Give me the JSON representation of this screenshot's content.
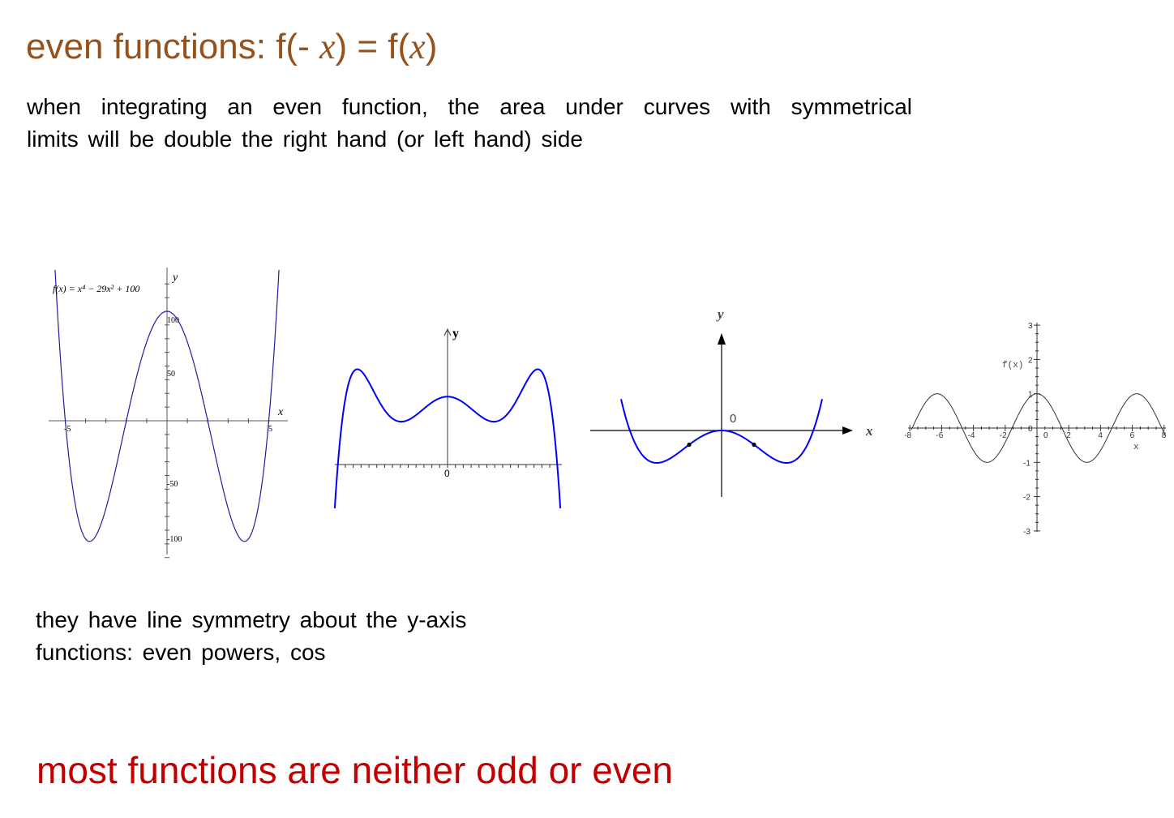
{
  "colors": {
    "title": "#97511a",
    "footer": "#c00000",
    "text": "#000000",
    "curve_blue": "#0000ff",
    "curve_navy": "#1f1f9c"
  },
  "title": {
    "prefix": "even functions: f(- ",
    "var1": "x",
    "middle": ") =  f(",
    "var2": "x",
    "suffix": ")"
  },
  "intro": {
    "line1": "when integrating an even function, the area under curves with symmetrical",
    "line2": "limits will be double the right hand (or left hand) side"
  },
  "graphs": {
    "g1": {
      "formula": "f(x) = x⁴ − 29x² + 100",
      "y_label": "y",
      "x_label": "x",
      "ticks": {
        "y100": "100",
        "y50": "50",
        "ym50": "-50",
        "ym100": "-100",
        "xm5": "-5",
        "x5": "5"
      }
    },
    "g2": {
      "y_label": "y",
      "origin": "0"
    },
    "g3": {
      "y_label": "y",
      "x_label": "x",
      "origin": "0"
    },
    "g4": {
      "y_label": "f(x)",
      "x_label": "x",
      "x_ticks": [
        "-8",
        "-6",
        "-4",
        "-2",
        "0",
        "2",
        "4",
        "6",
        "8"
      ],
      "y_ticks": [
        "3",
        "2",
        "1",
        "0",
        "-1",
        "-2",
        "-3"
      ]
    }
  },
  "notes": {
    "line1": "they have line symmetry about the y-axis",
    "line2": "functions: even powers, cos"
  },
  "footer": "most functions are neither odd or even"
}
